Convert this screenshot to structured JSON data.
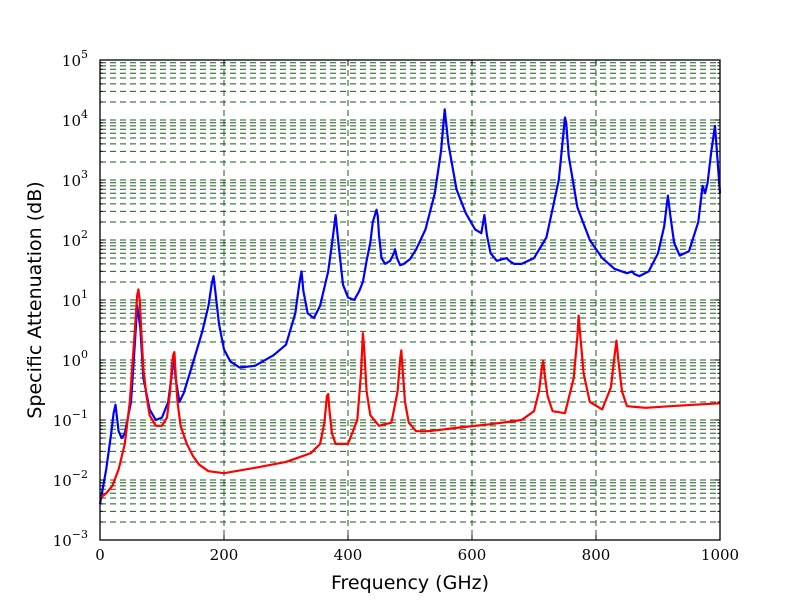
{
  "chart_data": {
    "type": "line",
    "title": "",
    "xlabel": "Frequency (GHz)",
    "ylabel": "Specific Attenuation (dB)",
    "xlim": [
      0,
      1000
    ],
    "ylim": [
      0.001,
      100000
    ],
    "yscale": "log",
    "grid": true,
    "grid_style": "dashed",
    "x_ticks": [
      {
        "value": 0,
        "label": "0"
      },
      {
        "value": 200,
        "label": "200"
      },
      {
        "value": 400,
        "label": "400"
      },
      {
        "value": 600,
        "label": "600"
      },
      {
        "value": 800,
        "label": "800"
      },
      {
        "value": 1000,
        "label": "1000"
      }
    ],
    "y_ticks": [
      {
        "value": 0.001,
        "base": "10",
        "exp": "−3"
      },
      {
        "value": 0.01,
        "base": "10",
        "exp": "−2"
      },
      {
        "value": 0.1,
        "base": "10",
        "exp": "−1"
      },
      {
        "value": 1,
        "base": "10",
        "exp": "0"
      },
      {
        "value": 10,
        "base": "10",
        "exp": "1"
      },
      {
        "value": 100,
        "base": "10",
        "exp": "2"
      },
      {
        "value": 1000,
        "base": "10",
        "exp": "3"
      },
      {
        "value": 10000,
        "base": "10",
        "exp": "4"
      },
      {
        "value": 100000,
        "base": "10",
        "exp": "5"
      }
    ],
    "colors": {
      "grid": "#1a5c1a",
      "series_1": "#0000ff",
      "series_2": "#ff0000"
    },
    "series": [
      {
        "color": "#0000ff",
        "x": [
          0,
          10,
          18,
          22,
          25,
          30,
          35,
          40,
          50,
          55,
          60,
          65,
          70,
          80,
          90,
          100,
          110,
          116,
          119,
          122,
          128,
          135,
          150,
          165,
          175,
          180,
          183,
          186,
          192,
          200,
          210,
          225,
          250,
          280,
          300,
          315,
          322,
          325,
          328,
          335,
          345,
          355,
          368,
          375,
          380,
          385,
          392,
          400,
          410,
          418,
          424,
          430,
          436,
          440,
          446,
          448,
          450,
          454,
          460,
          468,
          474,
          476,
          479,
          484,
          490,
          500,
          510,
          525,
          540,
          550,
          556,
          562,
          575,
          590,
          605,
          615,
          620,
          624,
          630,
          640,
          650,
          656,
          660,
          668,
          680,
          700,
          720,
          740,
          750,
          752,
          756,
          770,
          790,
          810,
          830,
          850,
          858,
          862,
          870,
          885,
          900,
          910,
          916,
          920,
          926,
          935,
          950,
          965,
          972,
          976,
          980,
          986,
          992,
          1000
        ],
        "y": [
          0.004,
          0.015,
          0.06,
          0.13,
          0.18,
          0.065,
          0.05,
          0.06,
          0.2,
          1.2,
          8,
          3.5,
          0.5,
          0.15,
          0.1,
          0.11,
          0.2,
          0.6,
          1.3,
          0.5,
          0.2,
          0.28,
          0.9,
          3,
          8,
          18,
          25,
          14,
          4,
          1.5,
          0.95,
          0.75,
          0.8,
          1.2,
          1.8,
          6,
          20,
          30,
          14,
          6,
          5,
          8,
          30,
          100,
          260,
          80,
          18,
          11,
          10,
          14,
          20,
          45,
          90,
          200,
          320,
          250,
          120,
          50,
          40,
          45,
          60,
          70,
          50,
          38,
          40,
          48,
          70,
          150,
          600,
          3000,
          15000,
          4000,
          700,
          280,
          150,
          130,
          260,
          120,
          60,
          45,
          48,
          50,
          45,
          40,
          40,
          50,
          110,
          1000,
          11000,
          9000,
          2500,
          350,
          100,
          50,
          33,
          28,
          30,
          27,
          25,
          30,
          60,
          170,
          550,
          250,
          90,
          55,
          65,
          200,
          800,
          600,
          900,
          3000,
          8000,
          600
        ]
      },
      {
        "color": "#ff0000",
        "x": [
          0,
          10,
          20,
          30,
          40,
          48,
          54,
          58,
          60,
          62,
          64,
          66,
          70,
          75,
          80,
          90,
          100,
          108,
          113,
          116,
          118,
          120,
          122,
          125,
          130,
          140,
          150,
          160,
          175,
          200,
          250,
          300,
          340,
          355,
          362,
          366,
          368,
          370,
          374,
          380,
          400,
          415,
          421,
          424,
          426,
          430,
          436,
          450,
          470,
          480,
          484,
          486,
          488,
          492,
          498,
          510,
          530,
          580,
          630,
          680,
          700,
          708,
          713,
          715,
          717,
          722,
          730,
          750,
          764,
          770,
          772,
          774,
          780,
          790,
          810,
          824,
          830,
          833,
          836,
          842,
          850,
          880,
          920,
          960,
          1000
        ],
        "y": [
          0.005,
          0.006,
          0.008,
          0.015,
          0.04,
          0.2,
          1.5,
          6,
          12,
          15,
          10,
          4,
          0.7,
          0.25,
          0.12,
          0.08,
          0.08,
          0.11,
          0.3,
          0.8,
          1.2,
          1.35,
          0.6,
          0.2,
          0.08,
          0.04,
          0.025,
          0.018,
          0.014,
          0.013,
          0.016,
          0.02,
          0.028,
          0.04,
          0.09,
          0.25,
          0.27,
          0.15,
          0.06,
          0.04,
          0.04,
          0.1,
          0.6,
          2.8,
          1.6,
          0.3,
          0.12,
          0.08,
          0.09,
          0.3,
          1,
          1.45,
          0.7,
          0.2,
          0.09,
          0.065,
          0.065,
          0.075,
          0.085,
          0.1,
          0.14,
          0.3,
          0.8,
          0.95,
          0.6,
          0.25,
          0.14,
          0.13,
          0.5,
          2.5,
          5.5,
          3,
          0.6,
          0.2,
          0.15,
          0.35,
          1.2,
          2.1,
          1,
          0.3,
          0.17,
          0.16,
          0.17,
          0.18,
          0.19
        ]
      }
    ]
  }
}
